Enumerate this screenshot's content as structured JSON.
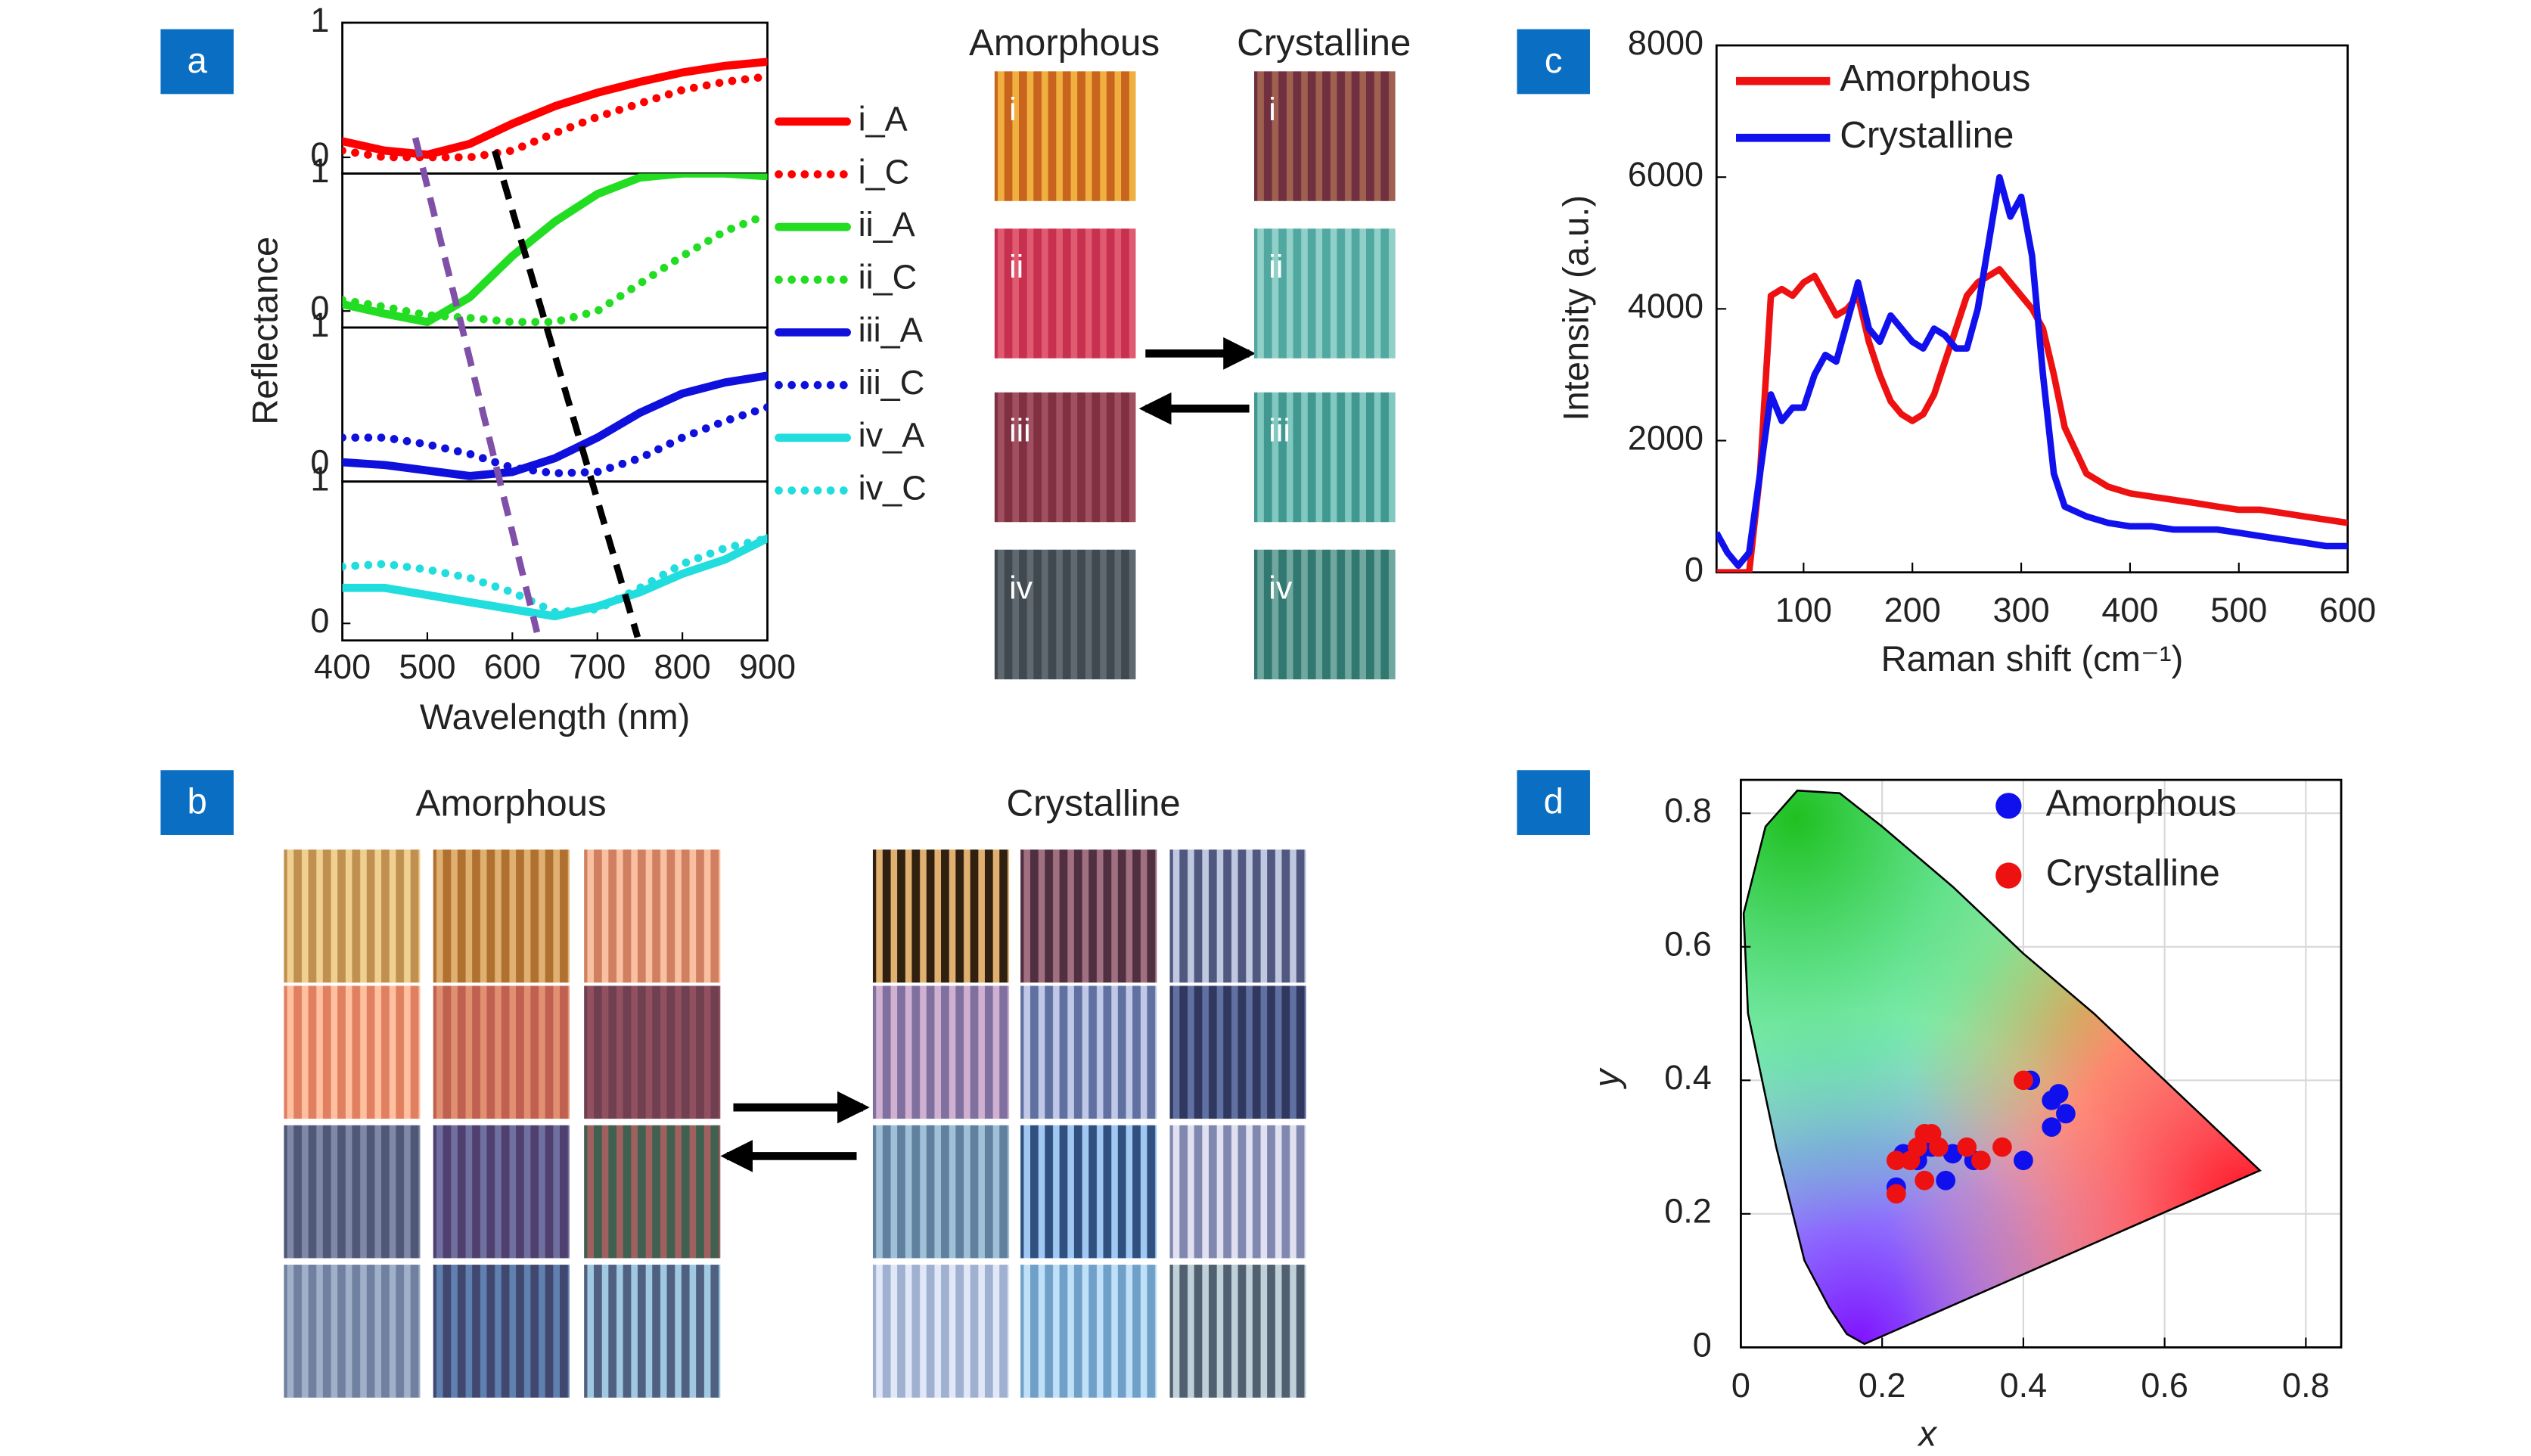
{
  "chart_data": [
    {
      "type": "line",
      "panel_label": "a",
      "xlabel": "Wavelength (nm)",
      "ylabel": "Reflectance",
      "xlim": [
        400,
        900
      ],
      "xticks": [
        400,
        500,
        600,
        700,
        800,
        900
      ],
      "x": [
        400,
        450,
        500,
        550,
        600,
        650,
        700,
        750,
        800,
        850,
        900
      ],
      "subplots": [
        {
          "ylim": [
            -0.12,
            1
          ],
          "yticks": [
            0,
            1
          ],
          "series": [
            {
              "name": "i_A",
              "color": "#ff0000",
              "style": "solid",
              "values": [
                0.12,
                0.05,
                0.02,
                0.1,
                0.25,
                0.38,
                0.48,
                0.56,
                0.63,
                0.68,
                0.71
              ]
            },
            {
              "name": "i_C",
              "color": "#ff0000",
              "style": "dotted",
              "values": [
                0.05,
                0.0,
                0.0,
                0.0,
                0.05,
                0.18,
                0.3,
                0.4,
                0.5,
                0.56,
                0.6
              ]
            }
          ]
        },
        {
          "ylim": [
            -0.12,
            1
          ],
          "yticks": [
            0,
            1
          ],
          "series": [
            {
              "name": "ii_A",
              "color": "#22dd22",
              "style": "solid",
              "values": [
                0.05,
                -0.02,
                -0.08,
                0.1,
                0.4,
                0.65,
                0.85,
                0.97,
                1.0,
                1.0,
                0.98
              ]
            },
            {
              "name": "ii_C",
              "color": "#22dd22",
              "style": "dotted",
              "values": [
                0.08,
                0.03,
                -0.03,
                -0.05,
                -0.08,
                -0.08,
                0.0,
                0.2,
                0.4,
                0.58,
                0.7
              ]
            }
          ]
        },
        {
          "ylim": [
            -0.12,
            1
          ],
          "yticks": [
            0,
            1
          ],
          "series": [
            {
              "name": "iii_A",
              "color": "#1010dd",
              "style": "solid",
              "values": [
                0.02,
                0.0,
                -0.04,
                -0.08,
                -0.05,
                0.05,
                0.2,
                0.38,
                0.52,
                0.6,
                0.65
              ]
            },
            {
              "name": "iii_C",
              "color": "#1010dd",
              "style": "dotted",
              "values": [
                0.2,
                0.2,
                0.15,
                0.08,
                -0.02,
                -0.06,
                -0.05,
                0.05,
                0.2,
                0.32,
                0.42
              ]
            }
          ]
        },
        {
          "ylim": [
            -0.12,
            1
          ],
          "yticks": [
            0,
            1
          ],
          "series": [
            {
              "name": "iv_A",
              "color": "#22dddd",
              "style": "solid",
              "values": [
                0.25,
                0.25,
                0.2,
                0.15,
                0.1,
                0.05,
                0.12,
                0.22,
                0.35,
                0.45,
                0.6
              ]
            },
            {
              "name": "iv_C",
              "color": "#22dddd",
              "style": "dotted",
              "values": [
                0.4,
                0.42,
                0.38,
                0.32,
                0.22,
                0.08,
                0.1,
                0.25,
                0.42,
                0.53,
                0.6
              ]
            }
          ]
        }
      ]
    },
    {
      "type": "line",
      "panel_label": "c",
      "xlabel": "Raman shift (cm⁻¹)",
      "ylabel": "Intensity (a.u.)",
      "xlim": [
        20,
        600
      ],
      "xticks": [
        100,
        200,
        300,
        400,
        500,
        600
      ],
      "ylim": [
        0,
        8000
      ],
      "yticks": [
        0,
        2000,
        4000,
        6000,
        8000
      ],
      "legend": "upper left",
      "x": [
        20,
        30,
        40,
        50,
        60,
        70,
        80,
        90,
        100,
        110,
        120,
        130,
        140,
        150,
        160,
        170,
        180,
        190,
        200,
        210,
        220,
        230,
        240,
        250,
        260,
        270,
        280,
        290,
        300,
        310,
        320,
        330,
        340,
        360,
        380,
        400,
        420,
        440,
        460,
        480,
        500,
        520,
        540,
        560,
        580,
        600
      ],
      "series": [
        {
          "name": "Amorphous",
          "color": "#ee1111",
          "values": [
            0,
            0,
            0,
            0,
            1500,
            4200,
            4300,
            4200,
            4400,
            4500,
            4200,
            3900,
            4000,
            4200,
            3500,
            3000,
            2600,
            2400,
            2300,
            2400,
            2700,
            3200,
            3700,
            4200,
            4400,
            4500,
            4600,
            4400,
            4200,
            4000,
            3700,
            3000,
            2200,
            1500,
            1300,
            1200,
            1150,
            1100,
            1050,
            1000,
            950,
            950,
            900,
            850,
            800,
            750
          ]
        },
        {
          "name": "Crystalline",
          "color": "#1111ee",
          "values": [
            600,
            300,
            100,
            300,
            1500,
            2700,
            2300,
            2500,
            2500,
            3000,
            3300,
            3200,
            3800,
            4400,
            3700,
            3500,
            3900,
            3700,
            3500,
            3400,
            3700,
            3600,
            3400,
            3400,
            4000,
            5000,
            6000,
            5400,
            5700,
            4800,
            3000,
            1500,
            1000,
            850,
            750,
            700,
            700,
            650,
            650,
            650,
            600,
            550,
            500,
            450,
            400,
            400
          ]
        }
      ]
    },
    {
      "type": "scatter",
      "panel_label": "d",
      "xlabel": "x",
      "ylabel": "y",
      "xlim": [
        0,
        0.85
      ],
      "xticks": [
        0,
        0.2,
        0.4,
        0.6,
        0.8
      ],
      "ylim": [
        0,
        0.85
      ],
      "yticks": [
        0,
        0.2,
        0.4,
        0.6,
        0.8
      ],
      "grid": true,
      "legend": "upper right",
      "series": [
        {
          "name": "Amorphous",
          "color": "#1010ee",
          "x": [
            0.22,
            0.23,
            0.25,
            0.27,
            0.29,
            0.3,
            0.33,
            0.4,
            0.41,
            0.44,
            0.45,
            0.46,
            0.44,
            0.26
          ],
          "values": [
            0.24,
            0.29,
            0.28,
            0.3,
            0.25,
            0.29,
            0.28,
            0.28,
            0.4,
            0.37,
            0.38,
            0.35,
            0.33,
            0.3
          ]
        },
        {
          "name": "Crystalline",
          "color": "#ee1111",
          "x": [
            0.22,
            0.22,
            0.24,
            0.26,
            0.27,
            0.26,
            0.28,
            0.32,
            0.34,
            0.37,
            0.4,
            0.25
          ],
          "values": [
            0.23,
            0.28,
            0.28,
            0.32,
            0.32,
            0.25,
            0.3,
            0.3,
            0.28,
            0.3,
            0.4,
            0.3
          ]
        }
      ]
    }
  ],
  "images": [
    {
      "columns": [
        "Amorphous",
        "Crystalline"
      ],
      "rows": [
        "i",
        "ii",
        "iii",
        "iv"
      ],
      "tile_colors": [
        [
          [
            "#c8641e",
            "#f0b040"
          ],
          [
            "#703040",
            "#a06050"
          ]
        ],
        [
          [
            "#c83050",
            "#e05a70"
          ],
          [
            "#50a8a0",
            "#90d0c8"
          ]
        ],
        [
          [
            "#803040",
            "#a05060"
          ],
          [
            "#409890",
            "#80c8c0"
          ]
        ],
        [
          [
            "#404850",
            "#606870"
          ],
          [
            "#307870",
            "#70a8a0"
          ]
        ]
      ]
    },
    {
      "panel_label": "b",
      "columns": [
        "Amorphous",
        "Crystalline"
      ],
      "tile_colors": [
        [
          [
            "#c09050",
            "#f0d090"
          ],
          [
            "#b07030",
            "#e0b070"
          ],
          [
            "#d08060",
            "#f8c0a0"
          ],
          [
            "#302010",
            "#e0b070"
          ],
          [
            "#503040",
            "#a07080"
          ],
          [
            "#505880",
            "#c0c8e0"
          ]
        ],
        [
          [
            "#e08060",
            "#ffc0a0"
          ],
          [
            "#c06050",
            "#e09070"
          ],
          [
            "#704050",
            "#905060"
          ],
          [
            "#8070a0",
            "#d0b0d0"
          ],
          [
            "#6070a0",
            "#c0c8e8"
          ],
          [
            "#303860",
            "#6070a0"
          ]
        ],
        [
          [
            "#505878",
            "#8088a8"
          ],
          [
            "#504070",
            "#7070a0"
          ],
          [
            "#406050",
            "#a06060"
          ],
          [
            "#6080a0",
            "#a0c0d8"
          ],
          [
            "#305080",
            "#a0c8f0"
          ],
          [
            "#8088b0",
            "#e0e0f0"
          ]
        ],
        [
          [
            "#7080a0",
            "#a0b0c8"
          ],
          [
            "#404870",
            "#6080b0"
          ],
          [
            "#506080",
            "#a0c8e0"
          ],
          [
            "#a0b0d0",
            "#e0e8f8"
          ],
          [
            "#70a0c8",
            "#c0e0f8"
          ],
          [
            "#506070",
            "#c0d0d8"
          ]
        ]
      ]
    }
  ]
}
